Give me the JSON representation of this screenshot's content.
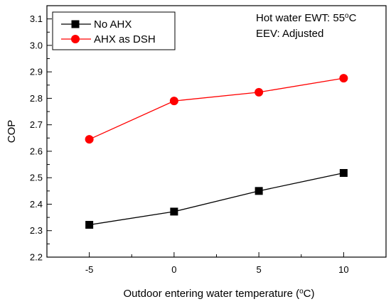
{
  "chart_data": {
    "type": "line",
    "xlabel": "Outdoor entering water temperature (",
    "xlabel_unit_sup": "o",
    "xlabel_unit_tail": "C)",
    "ylabel": "COP",
    "x": [
      -5,
      0,
      5,
      10
    ],
    "x_tick_labels": [
      "-5",
      "0",
      "5",
      "10"
    ],
    "xlim": [
      -7.5,
      12.5
    ],
    "ylim": [
      2.2,
      3.15
    ],
    "y_ticks": [
      2.2,
      2.3,
      2.4,
      2.5,
      2.6,
      2.7,
      2.8,
      2.9,
      3.0,
      3.1
    ],
    "y_tick_labels": [
      "2.2",
      "2.3",
      "2.4",
      "2.5",
      "2.6",
      "2.7",
      "2.8",
      "2.9",
      "3.0",
      "3.1"
    ],
    "grid": false,
    "legend_position": "top-left",
    "series": [
      {
        "name": "No AHX",
        "values": [
          2.322,
          2.372,
          2.45,
          2.518
        ],
        "color": "#000000",
        "marker": "square"
      },
      {
        "name": "AHX as DSH",
        "values": [
          2.645,
          2.79,
          2.823,
          2.876
        ],
        "color": "#ff0000",
        "marker": "circle"
      }
    ],
    "annotations": [
      {
        "text_main": "Hot water EWT: 55",
        "text_sup": "o",
        "text_tail": "C"
      },
      {
        "text_main": "EEV: Adjusted"
      }
    ]
  }
}
